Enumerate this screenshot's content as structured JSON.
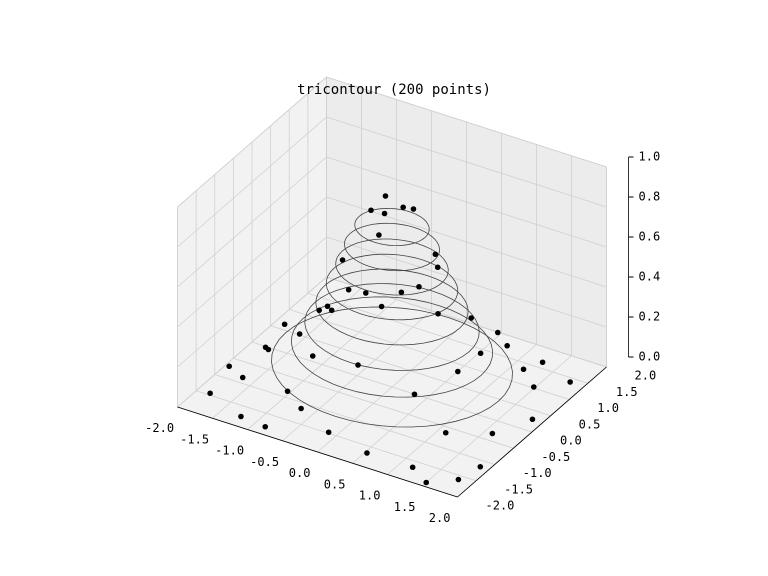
{
  "chart_data": {
    "type": "scatter3d",
    "title": "tricontour (200 points)",
    "xlim": [
      -2,
      2
    ],
    "ylim": [
      -2,
      2
    ],
    "zlim": [
      0,
      1
    ],
    "xticks": [
      {
        "value": -2,
        "label": "-2.0"
      },
      {
        "value": -1.5,
        "label": "-1.5"
      },
      {
        "value": -1,
        "label": "-1.0"
      },
      {
        "value": -0.5,
        "label": "-0.5"
      },
      {
        "value": 0,
        "label": "0.0"
      },
      {
        "value": 0.5,
        "label": "0.5"
      },
      {
        "value": 1,
        "label": "1.0"
      },
      {
        "value": 1.5,
        "label": "1.5"
      },
      {
        "value": 2,
        "label": "2.0"
      }
    ],
    "yticks": [
      {
        "value": -2,
        "label": "-2.0"
      },
      {
        "value": -1.5,
        "label": "-1.5"
      },
      {
        "value": -1,
        "label": "-1.0"
      },
      {
        "value": -0.5,
        "label": "-0.5"
      },
      {
        "value": 0,
        "label": "0.0"
      },
      {
        "value": 0.5,
        "label": "0.5"
      },
      {
        "value": 1,
        "label": "1.0"
      },
      {
        "value": 1.5,
        "label": "1.5"
      },
      {
        "value": 2,
        "label": "2.0"
      }
    ],
    "zticks": [
      {
        "value": 0,
        "label": "0.0"
      },
      {
        "value": 0.2,
        "label": "0.2"
      },
      {
        "value": 0.4,
        "label": "0.4"
      },
      {
        "value": 0.6,
        "label": "0.6"
      },
      {
        "value": 0.8,
        "label": "0.8"
      },
      {
        "value": 1,
        "label": "1.0"
      }
    ],
    "grid": true,
    "contour_color": "#444444",
    "contours": [
      {
        "level": 0.1,
        "radius": 1.52
      },
      {
        "level": 0.2,
        "radius": 1.27
      },
      {
        "level": 0.3,
        "radius": 1.1
      },
      {
        "level": 0.4,
        "radius": 0.96
      },
      {
        "level": 0.5,
        "radius": 0.83
      },
      {
        "level": 0.6,
        "radius": 0.71
      },
      {
        "level": 0.7,
        "radius": 0.6
      },
      {
        "level": 0.8,
        "radius": 0.47
      }
    ],
    "series": [
      {
        "color": "#000000",
        "x": [
          -1.8,
          -1.6,
          -1.9,
          -1.2,
          -0.8,
          0.0,
          0.6,
          1.2,
          1.5,
          1.8,
          1.9,
          1.7,
          1.9,
          1.6,
          1.8,
          1.3,
          0.5,
          -0.3,
          -1.0,
          -1.5,
          -1.8,
          -1.7,
          -1.2,
          -1.0,
          -0.6,
          0.1,
          0.8,
          1.1,
          1.0,
          0.6,
          -0.2,
          -0.8,
          -0.6,
          -0.3,
          0.4,
          0.6,
          0.3,
          -0.4,
          -0.3,
          0.0,
          0.2,
          0.0,
          -0.2,
          -0.8,
          1.3,
          1.4,
          -1.4,
          -0.5,
          0.9,
          -1.5
        ],
        "y": [
          -1.5,
          -1.0,
          -0.8,
          -1.8,
          -1.9,
          -1.7,
          -1.8,
          -1.7,
          -1.9,
          -1.6,
          -1.2,
          -0.5,
          0.2,
          0.8,
          1.4,
          1.6,
          1.9,
          1.8,
          1.6,
          1.2,
          0.5,
          -0.2,
          0.3,
          -0.6,
          -1.0,
          -1.1,
          -0.9,
          -0.3,
          0.5,
          1.0,
          1.1,
          0.8,
          -0.2,
          -0.6,
          -0.5,
          0.1,
          0.6,
          0.4,
          0.0,
          -0.2,
          0.2,
          0.3,
          0.2,
          -1.3,
          -1.0,
          0.9,
          0.9,
          -1.5,
          1.4,
          -0.5
        ],
        "z": [
          0.01,
          0.03,
          0.02,
          0.01,
          0.02,
          0.05,
          0.03,
          0.01,
          0.0,
          0.0,
          0.01,
          0.04,
          0.02,
          0.05,
          0.0,
          0.01,
          0.02,
          0.04,
          0.03,
          0.02,
          0.03,
          0.04,
          0.2,
          0.25,
          0.25,
          0.3,
          0.2,
          0.25,
          0.2,
          0.25,
          0.3,
          0.25,
          0.6,
          0.55,
          0.6,
          0.65,
          0.6,
          0.65,
          0.85,
          0.9,
          0.88,
          0.85,
          0.9,
          0.1,
          0.08,
          0.1,
          0.1,
          0.08,
          0.08,
          0.1
        ]
      }
    ]
  }
}
